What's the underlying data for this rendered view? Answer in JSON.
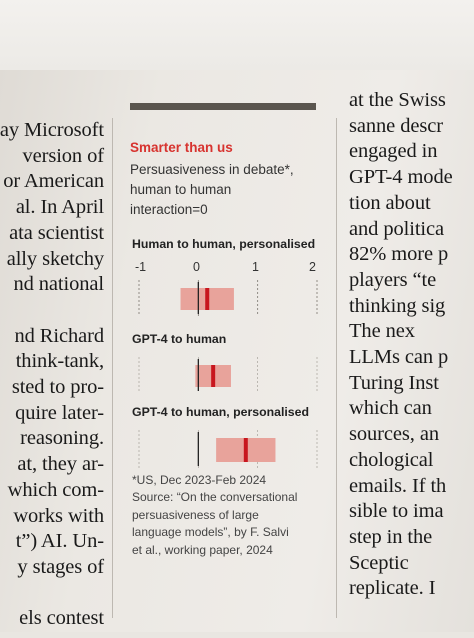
{
  "left_column": [
    "ay Microsoft",
    "version of",
    "or American",
    "al. In April",
    "ata scientist",
    "ally sketchy",
    "nd national",
    "",
    "nd Richard",
    "think-tank,",
    "sted to pro-",
    "quire later-",
    "reasoning.",
    "at, they ar-",
    "which com-",
    "works with",
    "t”) AI. Un-",
    "y stages of",
    "",
    "els contest"
  ],
  "right_column": [
    "at the Swiss",
    "sanne descr",
    "engaged in",
    "GPT-4 mode",
    "tion about",
    "and politica",
    "82% more p",
    "players “te",
    "thinking sig",
    "The nex",
    "LLMs can p",
    "Turing Inst",
    "which can",
    "sources, an",
    "chological",
    "emails. If th",
    "sible to ima",
    "step in the",
    "Sceptic",
    "replicate. I"
  ],
  "chart": {
    "kicker": "Smarter than us",
    "title": "Persuasiveness in debate*, human to human interaction=0",
    "note": "*US, Dec 2023-Feb 2024",
    "source": "Source: “On the conversational persuasiveness of large language models”, by F. Salvi et al., working paper, 2024",
    "colors": {
      "accent": "#d7332f",
      "range": "#e8a39b",
      "point": "#c8161e",
      "kicker": "#d7332f"
    }
  },
  "chart_data": {
    "type": "bar",
    "title": "Persuasiveness in debate*, human to human interaction=0",
    "xlim": [
      -1,
      2
    ],
    "x_ticks": [
      "-1",
      "0",
      "1",
      "2"
    ],
    "series": [
      {
        "name": "Human to human, personalised",
        "estimate": 0.15,
        "range": [
          -0.3,
          0.6
        ]
      },
      {
        "name": "GPT-4 to human",
        "estimate": 0.25,
        "range": [
          -0.05,
          0.55
        ]
      },
      {
        "name": "GPT-4 to human, personalised",
        "estimate": 0.8,
        "range": [
          0.3,
          1.3
        ]
      }
    ]
  }
}
